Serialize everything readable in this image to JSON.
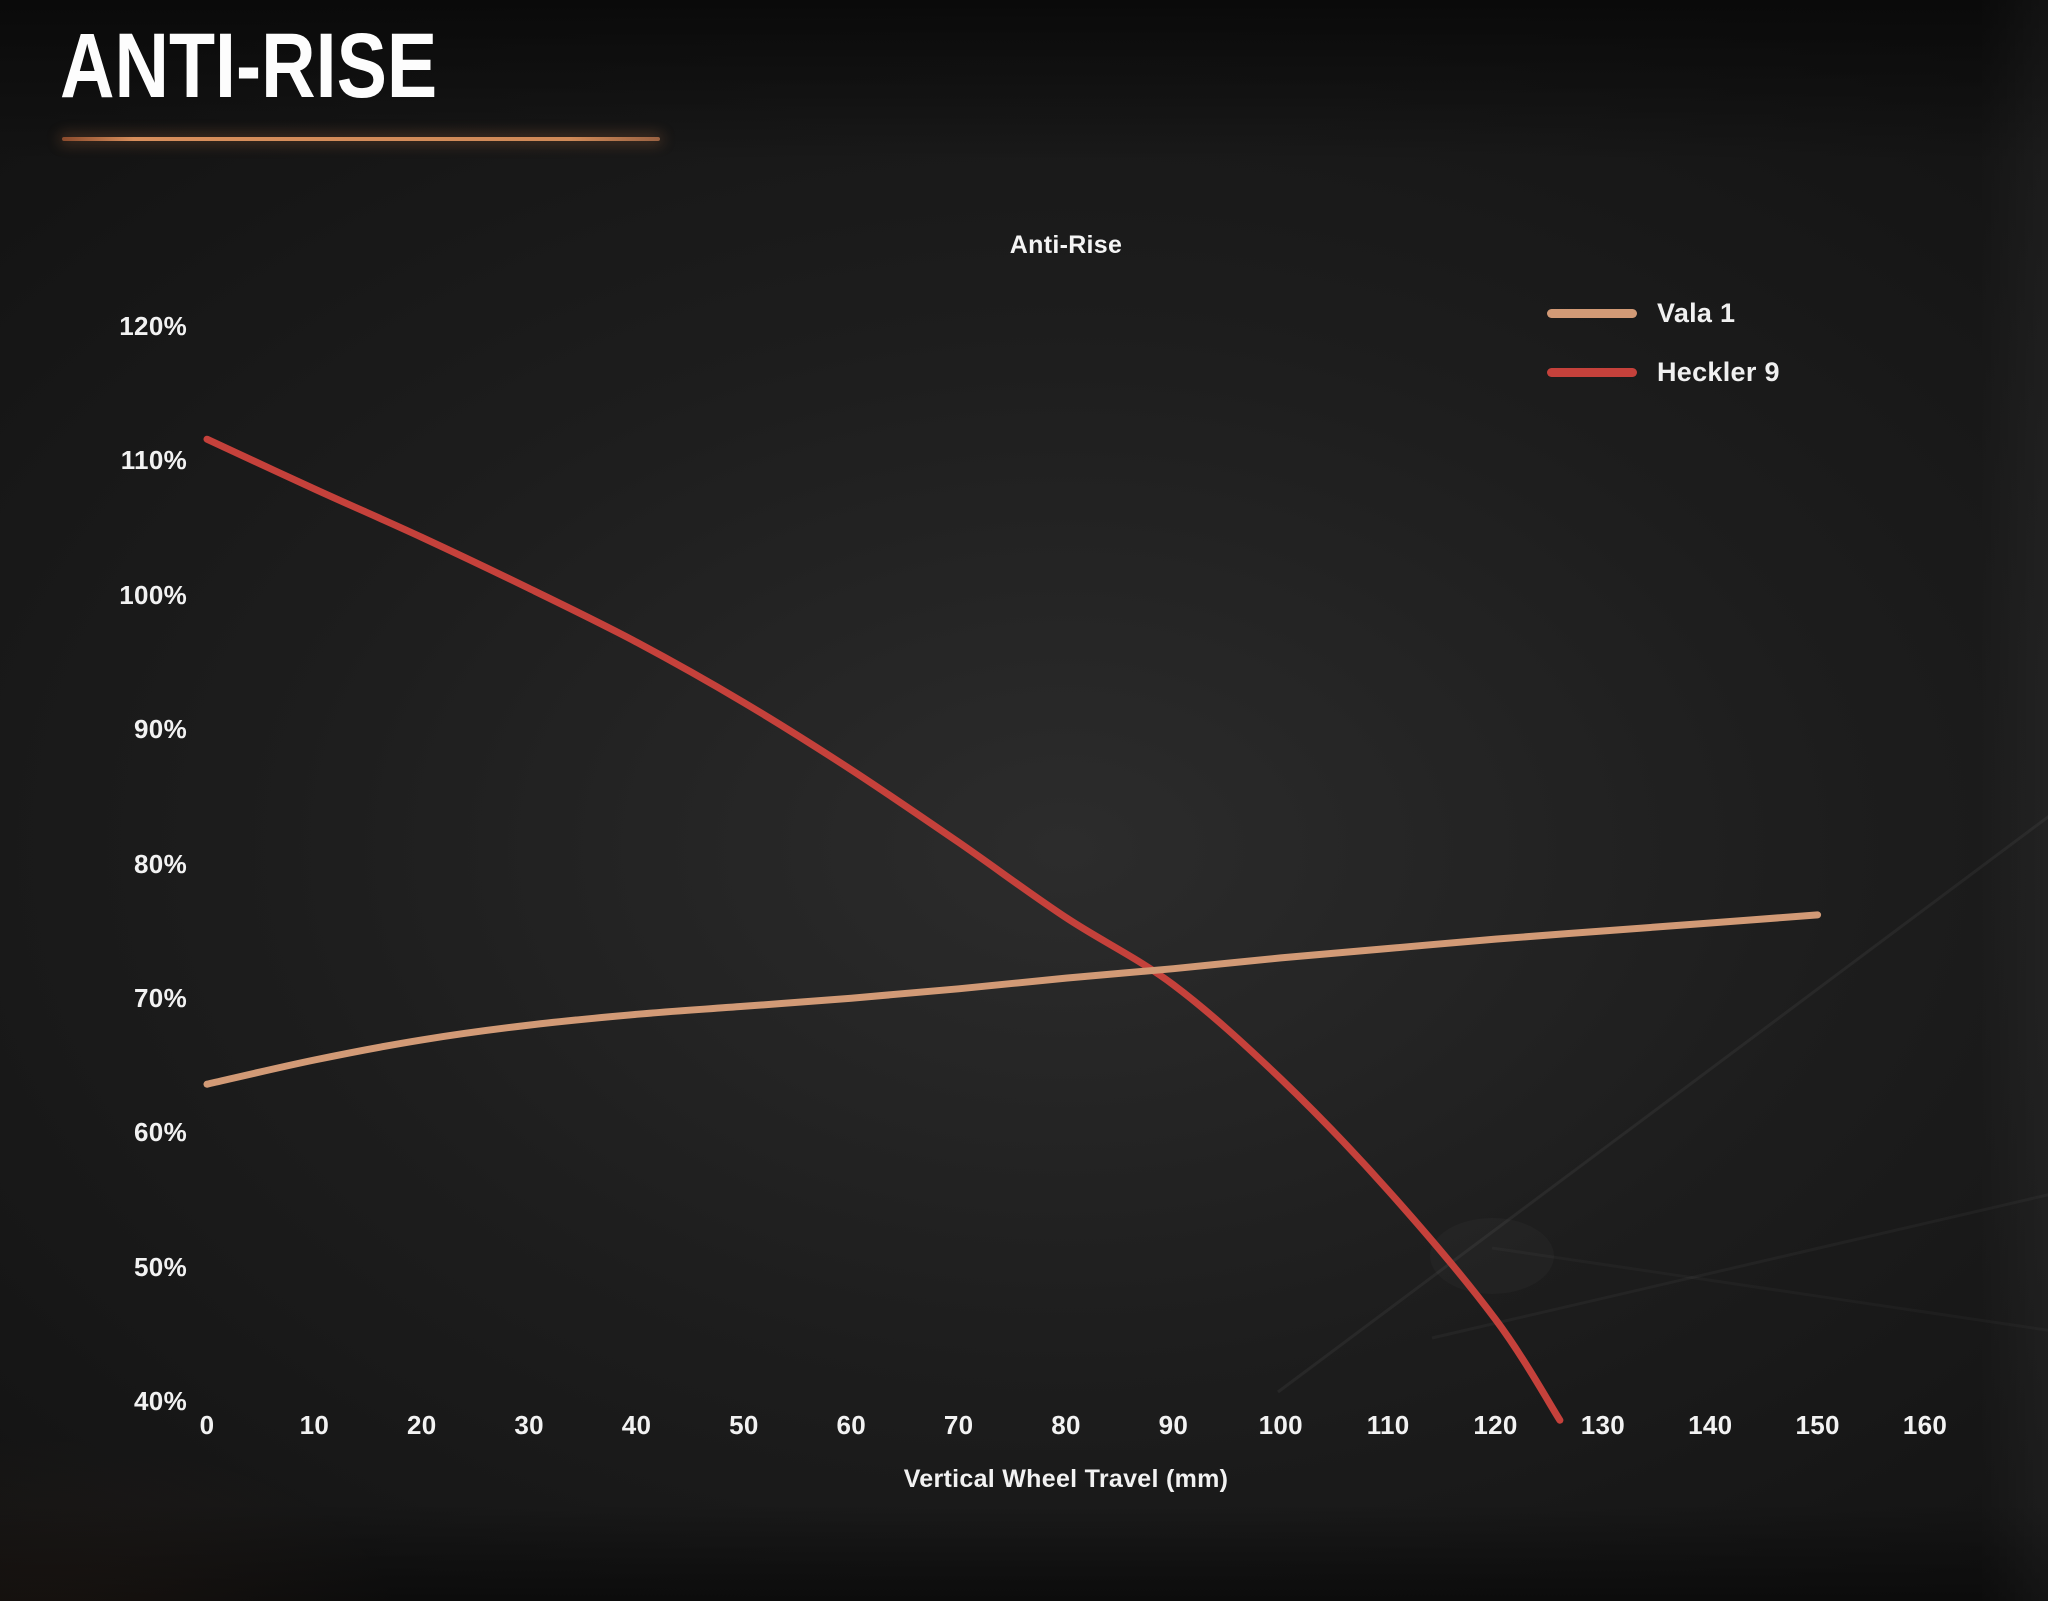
{
  "page": {
    "heading": "ANTI-RISE"
  },
  "chart_data": {
    "type": "line",
    "title": "Anti-Rise",
    "xlabel": "Vertical Wheel Travel (mm)",
    "ylabel": "",
    "x_ticks": [
      0,
      10,
      20,
      30,
      40,
      50,
      60,
      70,
      80,
      90,
      100,
      110,
      120,
      130,
      140,
      150,
      160
    ],
    "y_ticks": [
      120,
      110,
      100,
      90,
      80,
      70,
      60,
      50,
      40
    ],
    "y_tick_suffix": "%",
    "xlim": [
      0,
      160
    ],
    "ylim": [
      40,
      120
    ],
    "grid": false,
    "legend_position": "top-right",
    "series": [
      {
        "name": "Heckler 9",
        "color": "#c5413b",
        "x": [
          0,
          10,
          20,
          30,
          40,
          50,
          60,
          70,
          80,
          90,
          100,
          110,
          120,
          126
        ],
        "y": [
          111.5,
          107.8,
          104.2,
          100.4,
          96.4,
          91.9,
          86.9,
          81.5,
          75.9,
          70.9,
          63.9,
          55.6,
          46.0,
          38.5
        ]
      },
      {
        "name": "Vala 1",
        "color": "#d29a76",
        "x": [
          0,
          10,
          20,
          30,
          40,
          50,
          60,
          70,
          80,
          90,
          100,
          110,
          120,
          130,
          140,
          150
        ],
        "y": [
          63.5,
          65.3,
          66.8,
          67.9,
          68.7,
          69.3,
          69.9,
          70.6,
          71.4,
          72.1,
          72.9,
          73.6,
          74.3,
          74.9,
          75.5,
          76.1
        ]
      }
    ]
  },
  "colors": {
    "accent_copper": "#cf8455",
    "heckler_red": "#c5413b",
    "vala_tan": "#d29a76",
    "text": "#f2f2f2"
  }
}
